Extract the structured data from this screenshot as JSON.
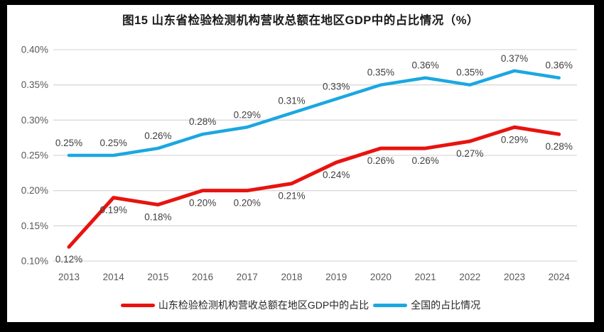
{
  "frame": {
    "border_color": "#000000",
    "canvas_background": "#ffffff"
  },
  "chart_data": {
    "type": "line",
    "title": "图15  山东省检验检测机构营收总额在地区GDP中的占比情况（%）",
    "categories": [
      "2013",
      "2014",
      "2015",
      "2016",
      "2017",
      "2018",
      "2019",
      "2020",
      "2021",
      "2022",
      "2023",
      "2024"
    ],
    "series": [
      {
        "name": "山东检验检测机构营收总额在地区GDP中的占比",
        "color": "#e8130f",
        "values": [
          0.12,
          0.19,
          0.18,
          0.2,
          0.2,
          0.21,
          0.24,
          0.26,
          0.26,
          0.27,
          0.29,
          0.28
        ],
        "point_labels": [
          "0.12%",
          "0.19%",
          "0.18%",
          "0.20%",
          "0.20%",
          "0.21%",
          "0.24%",
          "0.26%",
          "0.26%",
          "0.27%",
          "0.29%",
          "0.28%"
        ],
        "label_position": "below",
        "stroke_width": 5
      },
      {
        "name": "全国的占比情况",
        "color": "#1ba7e0",
        "values": [
          0.25,
          0.25,
          0.26,
          0.28,
          0.29,
          0.31,
          0.33,
          0.35,
          0.36,
          0.35,
          0.37,
          0.36
        ],
        "point_labels": [
          "0.25%",
          "0.25%",
          "0.26%",
          "0.28%",
          "0.29%",
          "0.31%",
          "0.33%",
          "0.35%",
          "0.36%",
          "0.35%",
          "0.37%",
          "0.36%"
        ],
        "label_position": "above",
        "stroke_width": 4.5
      }
    ],
    "y_axis": {
      "min": 0.1,
      "max": 0.4,
      "ticks": [
        {
          "value": 0.4,
          "label": "0.40%"
        },
        {
          "value": 0.35,
          "label": "0.35%"
        },
        {
          "value": 0.3,
          "label": "0.30%"
        },
        {
          "value": 0.25,
          "label": "0.25%"
        },
        {
          "value": 0.2,
          "label": "0.20%"
        },
        {
          "value": 0.15,
          "label": "0.15%"
        },
        {
          "value": 0.1,
          "label": "0.10%"
        }
      ]
    },
    "grid": true,
    "legend_position": "bottom",
    "colors": {
      "grid": "#d9d9d9",
      "tick_text": "#595959",
      "data_label_text": "#3f3f3f",
      "title_text": "#1a1a1a"
    }
  }
}
